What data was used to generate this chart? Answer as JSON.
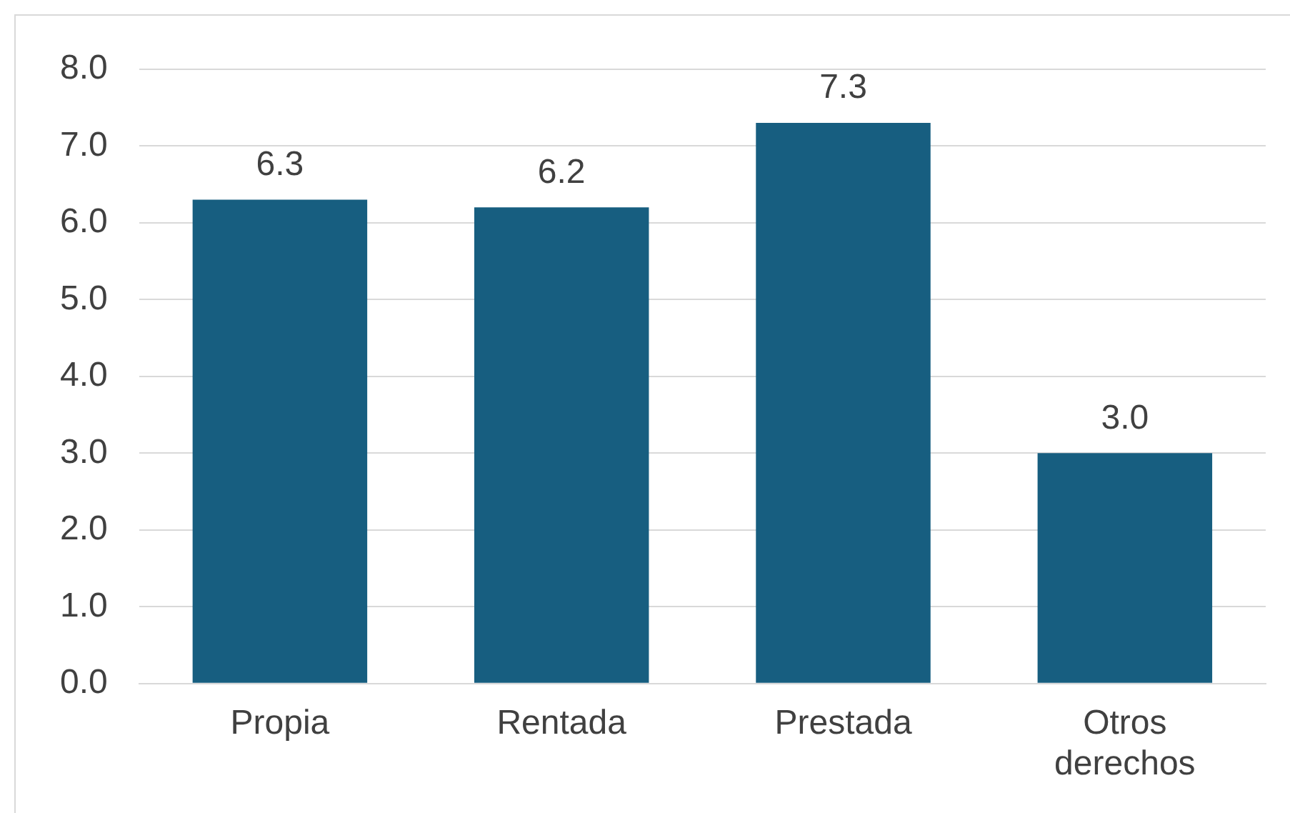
{
  "chart_data": {
    "type": "bar",
    "categories": [
      "Propia",
      "Rentada",
      "Prestada",
      "Otros derechos"
    ],
    "values": [
      6.3,
      6.2,
      7.3,
      3.0
    ],
    "color": "#175e80",
    "ylim": [
      0,
      8
    ],
    "yticks": [
      {
        "value": 0,
        "label": "0.0"
      },
      {
        "value": 1,
        "label": "1.0"
      },
      {
        "value": 2,
        "label": "2.0"
      },
      {
        "value": 3,
        "label": "3.0"
      },
      {
        "value": 4,
        "label": "4.0"
      },
      {
        "value": 5,
        "label": "5.0"
      },
      {
        "value": 6,
        "label": "6.0"
      },
      {
        "value": 7,
        "label": "7.0"
      },
      {
        "value": 8,
        "label": "8.0"
      }
    ],
    "value_labels": [
      "6.3",
      "6.2",
      "7.3",
      "3.0"
    ],
    "grid": "y",
    "legend": false
  }
}
